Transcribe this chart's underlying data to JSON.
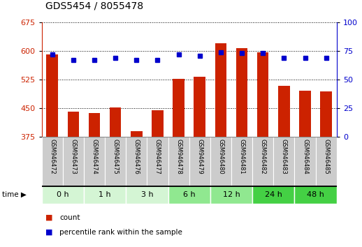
{
  "title": "GDS5454 / 8055478",
  "samples": [
    "GSM946472",
    "GSM946473",
    "GSM946474",
    "GSM946475",
    "GSM946476",
    "GSM946477",
    "GSM946478",
    "GSM946479",
    "GSM946480",
    "GSM946481",
    "GSM946482",
    "GSM946483",
    "GSM946484",
    "GSM946485"
  ],
  "count_values": [
    590,
    442,
    438,
    453,
    390,
    445,
    528,
    532,
    620,
    608,
    597,
    508,
    497,
    495
  ],
  "percentile_values": [
    72,
    67,
    67,
    69,
    67,
    67,
    72,
    71,
    74,
    73,
    73,
    69,
    69,
    69
  ],
  "time_groups": [
    {
      "label": "0 h",
      "start": 0,
      "end": 2,
      "color": "#d4f5d4"
    },
    {
      "label": "1 h",
      "start": 2,
      "end": 4,
      "color": "#d4f5d4"
    },
    {
      "label": "3 h",
      "start": 4,
      "end": 6,
      "color": "#d4f5d4"
    },
    {
      "label": "6 h",
      "start": 6,
      "end": 8,
      "color": "#90e890"
    },
    {
      "label": "12 h",
      "start": 8,
      "end": 10,
      "color": "#90e890"
    },
    {
      "label": "24 h",
      "start": 10,
      "end": 12,
      "color": "#44d044"
    },
    {
      "label": "48 h",
      "start": 12,
      "end": 14,
      "color": "#44d044"
    }
  ],
  "ylim_left": [
    375,
    675
  ],
  "ylim_right": [
    0,
    100
  ],
  "yticks_left": [
    375,
    450,
    525,
    600,
    675
  ],
  "yticks_right": [
    0,
    25,
    50,
    75,
    100
  ],
  "bar_color": "#cc2200",
  "dot_color": "#0000cc",
  "background_color": "#ffffff",
  "legend_count": "count",
  "legend_percentile": "percentile rank within the sample",
  "cell_color": "#cccccc",
  "cell_edge_color": "#ffffff"
}
